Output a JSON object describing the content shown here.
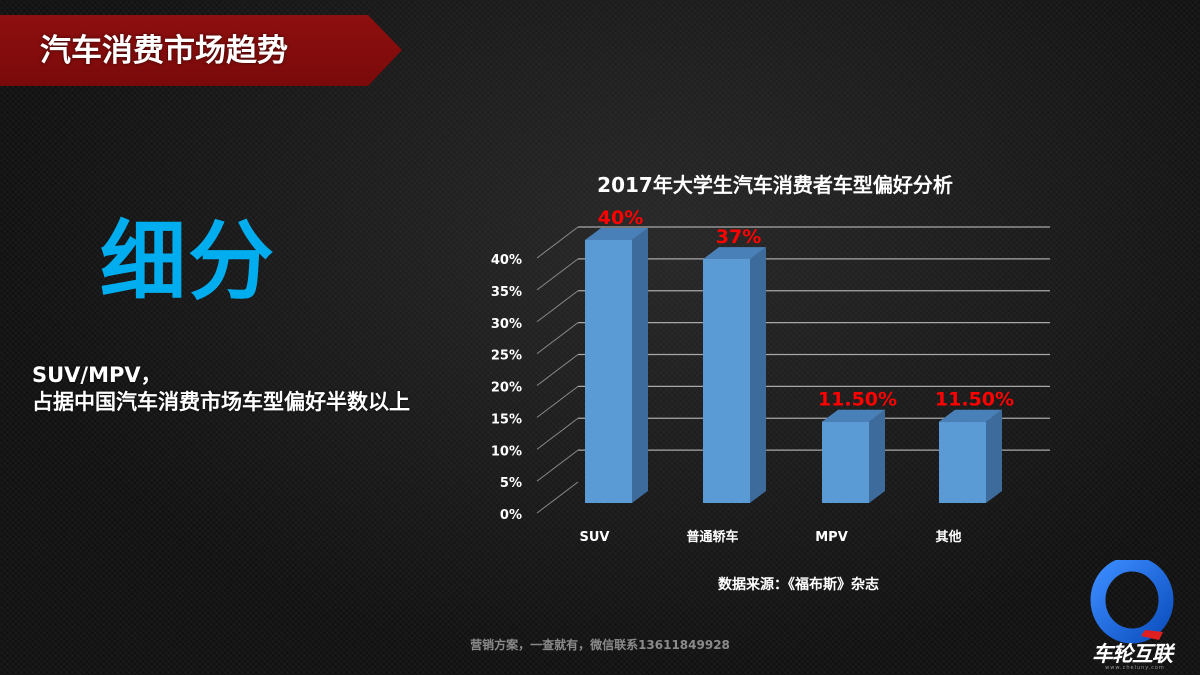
{
  "header": {
    "title": "汽车消费市场趋势",
    "banner_color": "#8e0f0f"
  },
  "main": {
    "keyword": "细分",
    "keyword_color": "#00aeef",
    "description_line1": "SUV/MPV，",
    "description_line2": "占据中国汽车消费市场车型偏好半数以上"
  },
  "chart_data": {
    "type": "bar",
    "title": "2017年大学生汽车消费者车型偏好分析",
    "categories": [
      "SUV",
      "普通轿车",
      "MPV",
      "其他"
    ],
    "values": [
      40,
      37,
      11.5,
      11.5
    ],
    "data_labels": [
      "40%",
      "37%",
      "11.50%",
      "11.50%"
    ],
    "xlabel": "",
    "ylabel": "",
    "ylim": [
      0,
      40
    ],
    "yticks": [
      "0%",
      "5%",
      "10%",
      "15%",
      "20%",
      "25%",
      "30%",
      "35%",
      "40%"
    ],
    "grid": true,
    "style": "3d-column",
    "bar_color": "#5b9bd5",
    "label_color": "#ff0000",
    "legend": null
  },
  "chart_source": "数据来源：《福布斯》杂志",
  "footer": {
    "text": "营销方案，一查就有，微信联系13611849928"
  },
  "logo": {
    "text": "车轮互联",
    "url": "www.cheluny.com",
    "ring_color": "#1e6fe0"
  }
}
